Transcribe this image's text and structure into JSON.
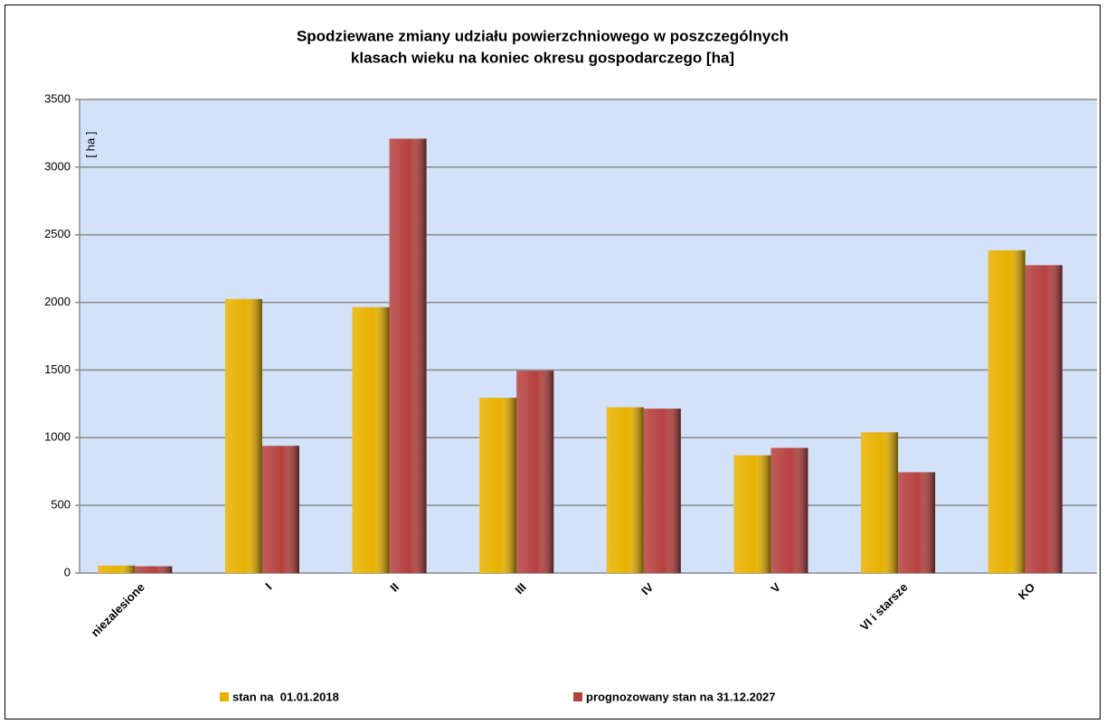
{
  "chart_data": {
    "type": "bar",
    "title": [
      "Spodziewane zmiany udziału powierzchniowego w poszczególnych",
      "klasach wieku na koniec okresu gospodarczego [ha]"
    ],
    "y_axis_label": "[ ha ]",
    "categories": [
      "niezalesione",
      "I",
      "II",
      "III",
      "IV",
      "V",
      "VI i starsze",
      "KO"
    ],
    "series": [
      {
        "name": "stan na  01.01.2018",
        "color": "#e8b100",
        "values": [
          55,
          2025,
          1965,
          1295,
          1225,
          870,
          1040,
          2385
        ]
      },
      {
        "name": "prognozowany stan na 31.12.2027",
        "color": "#b5413f",
        "values": [
          50,
          940,
          3210,
          1495,
          1215,
          925,
          745,
          2275
        ]
      }
    ],
    "ylim": [
      0,
      3500
    ],
    "yticks": [
      0,
      500,
      1000,
      1500,
      2000,
      2500,
      3000,
      3500
    ],
    "grid": true,
    "legend": "bottom"
  }
}
